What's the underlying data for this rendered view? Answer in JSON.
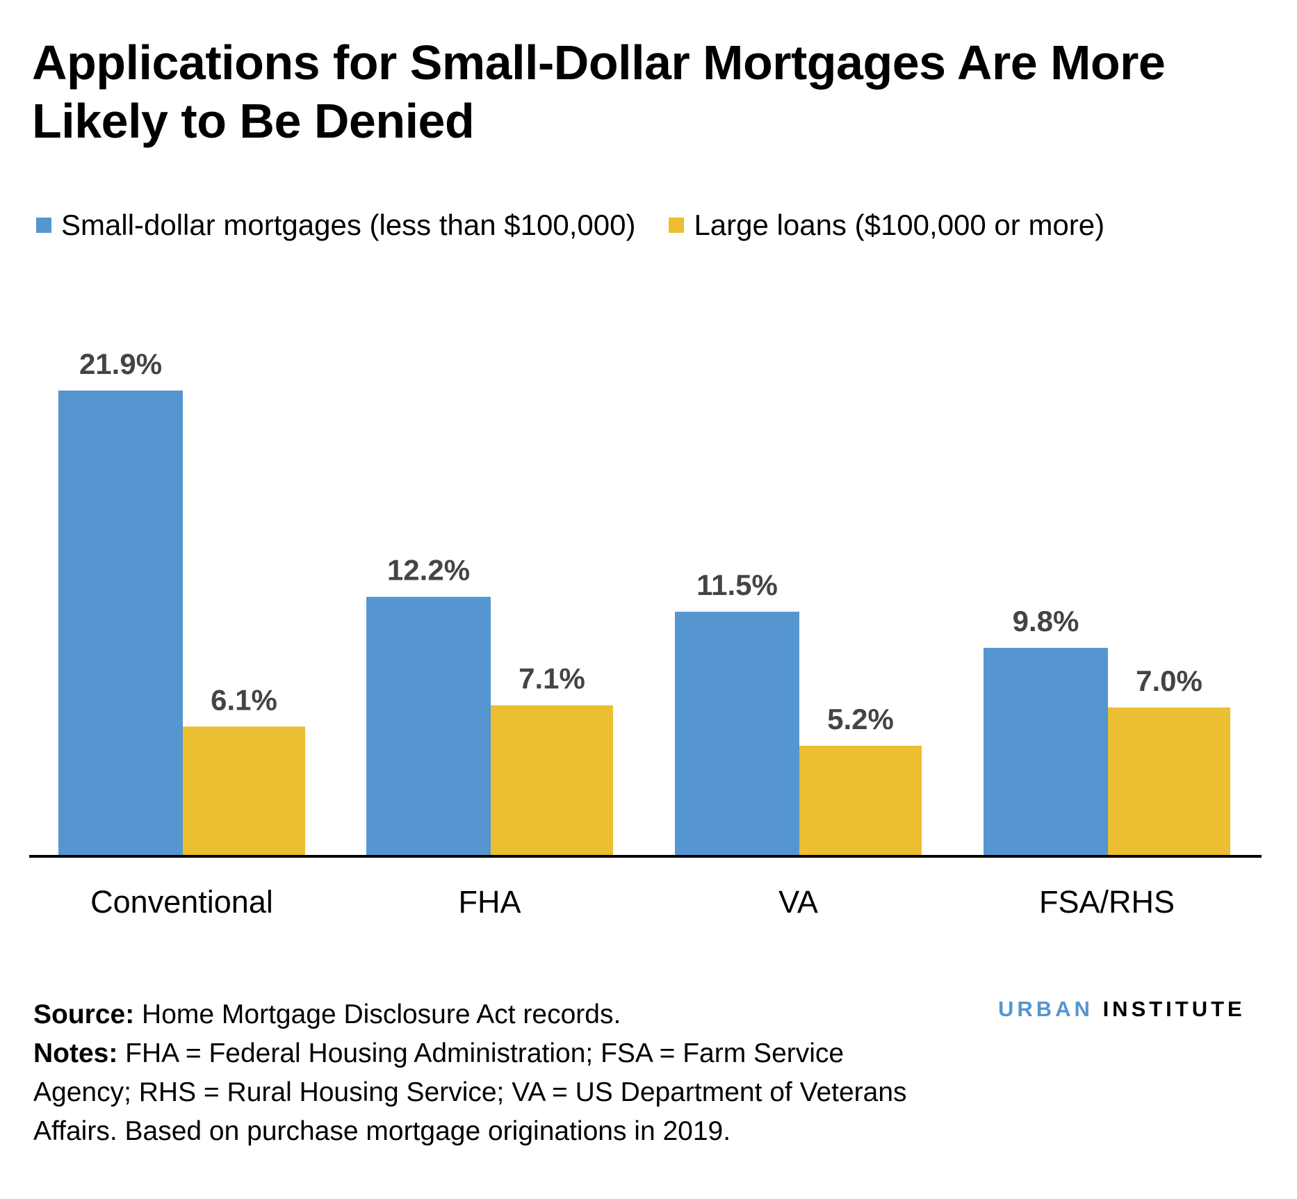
{
  "title": "Applications for Small-Dollar Mortgages Are More Likely to Be Denied",
  "colors": {
    "small": "#5596d0",
    "large": "#ecbe31",
    "axis": "#000000",
    "label": "#444444"
  },
  "chart_data": {
    "type": "bar",
    "title": "Applications for Small-Dollar Mortgages Are More Likely to Be Denied",
    "categories": [
      "Conventional",
      "FHA",
      "VA",
      "FSA/RHS"
    ],
    "series": [
      {
        "name": "Small-dollar mortgages (less than $100,000)",
        "values": [
          21.9,
          12.2,
          11.5,
          9.8
        ],
        "labels": [
          "21.9%",
          "12.2%",
          "11.5%",
          "9.8%"
        ]
      },
      {
        "name": "Large loans ($100,000 or more)",
        "values": [
          6.1,
          7.1,
          5.2,
          7.0
        ],
        "labels": [
          "6.1%",
          "7.1%",
          "5.2%",
          "7.0%"
        ]
      }
    ],
    "xlabel": "",
    "ylabel": "",
    "ylim": [
      0,
      25
    ],
    "grid": false,
    "legend": "top-left"
  },
  "notes": {
    "source_label": "Source:",
    "source_text": " Home Mortgage Disclosure Act records.",
    "notes_label": "Notes:",
    "notes_text": " FHA = Federal Housing Administration; FSA = Farm Service Agency; RHS = Rural Housing Service; VA = US Department of Veterans Affairs. Based on purchase mortgage originations in 2019."
  },
  "logo": {
    "part1": "URBAN",
    "part2": "INSTITUTE"
  }
}
